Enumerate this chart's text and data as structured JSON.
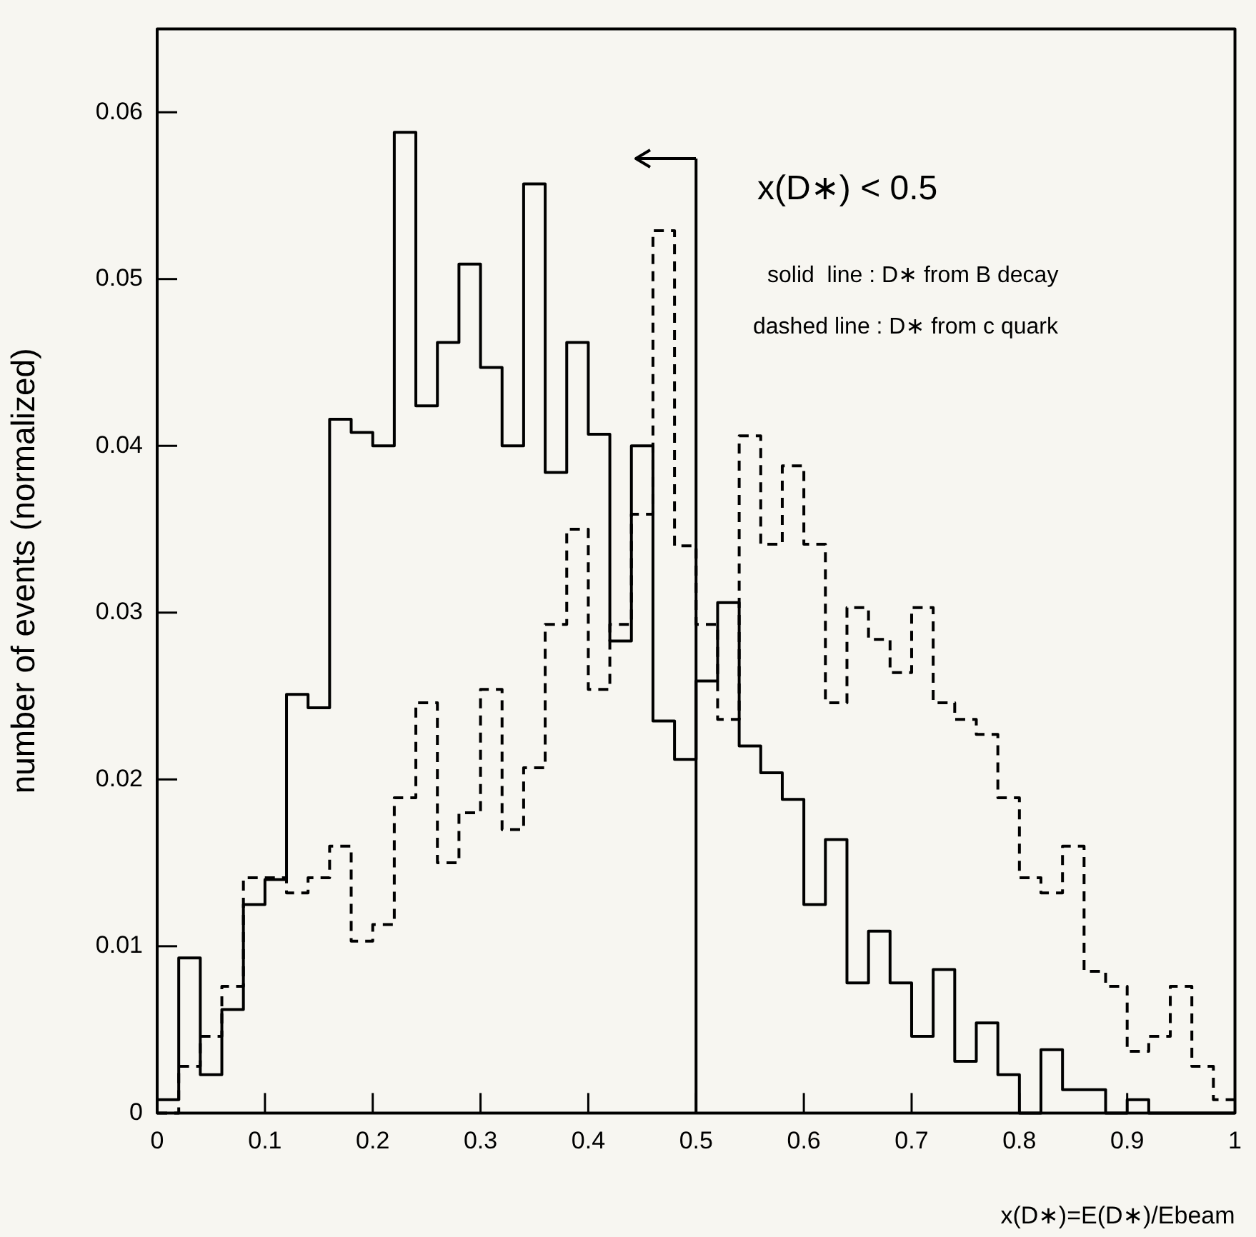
{
  "chart_data": {
    "type": "histogram",
    "xlabel": "x(D∗)=E(D∗)/Ebeam",
    "ylabel": "number of events (normalized)",
    "bins": [
      0,
      0.02,
      0.04,
      0.06,
      0.08,
      0.1,
      0.12,
      0.14,
      0.16,
      0.18,
      0.2,
      0.22,
      0.24,
      0.26,
      0.28,
      0.3,
      0.32,
      0.34,
      0.36,
      0.38,
      0.4,
      0.42,
      0.44,
      0.46,
      0.48,
      0.5,
      0.52,
      0.54,
      0.56,
      0.58,
      0.6,
      0.62,
      0.64,
      0.66,
      0.68,
      0.7,
      0.72,
      0.74,
      0.76,
      0.78,
      0.8,
      0.82,
      0.84,
      0.86,
      0.88,
      0.9,
      0.92,
      0.94,
      0.96,
      0.98,
      1
    ],
    "series": [
      {
        "color": "#000000",
        "line_style": "solid",
        "values": [
          0.0008,
          0.0093,
          0.0023,
          0.0062,
          0.0125,
          0.014,
          0.0251,
          0.0243,
          0.0416,
          0.0408,
          0.04,
          0.0588,
          0.0424,
          0.0462,
          0.0509,
          0.0447,
          0.04,
          0.0557,
          0.0384,
          0.0462,
          0.0407,
          0.0283,
          0.04,
          0.0235,
          0.0212,
          0.0259,
          0.0306,
          0.022,
          0.0204,
          0.0188,
          0.0125,
          0.0164,
          0.0078,
          0.0109,
          0.0078,
          0.0046,
          0.0086,
          0.0031,
          0.0054,
          0.0023,
          0,
          0.0038,
          0.0014,
          0.0014,
          0,
          0.0008,
          0,
          0,
          0,
          0
        ]
      },
      {
        "color": "#000000",
        "line_style": "dashed",
        "values": [
          0,
          0.0028,
          0.0046,
          0.0076,
          0.0141,
          0.0141,
          0.0132,
          0.0141,
          0.016,
          0.0103,
          0.0113,
          0.0189,
          0.0246,
          0.015,
          0.018,
          0.0254,
          0.017,
          0.0207,
          0.0293,
          0.035,
          0.0254,
          0.0293,
          0.0359,
          0.0529,
          0.034,
          0.0293,
          0.0236,
          0.0406,
          0.0341,
          0.0388,
          0.0341,
          0.0246,
          0.0303,
          0.0284,
          0.0264,
          0.0303,
          0.0246,
          0.0236,
          0.0227,
          0.0189,
          0.0141,
          0.0132,
          0.016,
          0.0085,
          0.0076,
          0.0037,
          0.0046,
          0.0076,
          0.0028,
          0.0008
        ]
      }
    ],
    "xlim": [
      0,
      1
    ],
    "xticks": [
      0,
      0.1,
      0.2,
      0.3,
      0.4,
      0.5,
      0.6,
      0.7,
      0.8,
      0.9,
      1
    ],
    "ylim": [
      0,
      0.065
    ],
    "yticks": [
      0,
      0.01,
      0.02,
      0.03,
      0.04,
      0.05,
      0.06
    ],
    "ref_lines": [
      {
        "axis": "x",
        "value": 0.5,
        "line_style": "solid",
        "color": "#000000"
      }
    ],
    "annotations": [
      "x(D∗) < 0.5",
      "solid  line : D∗ from B decay",
      "dashed line : D∗ from c quark"
    ],
    "grid": false,
    "legend": false
  }
}
